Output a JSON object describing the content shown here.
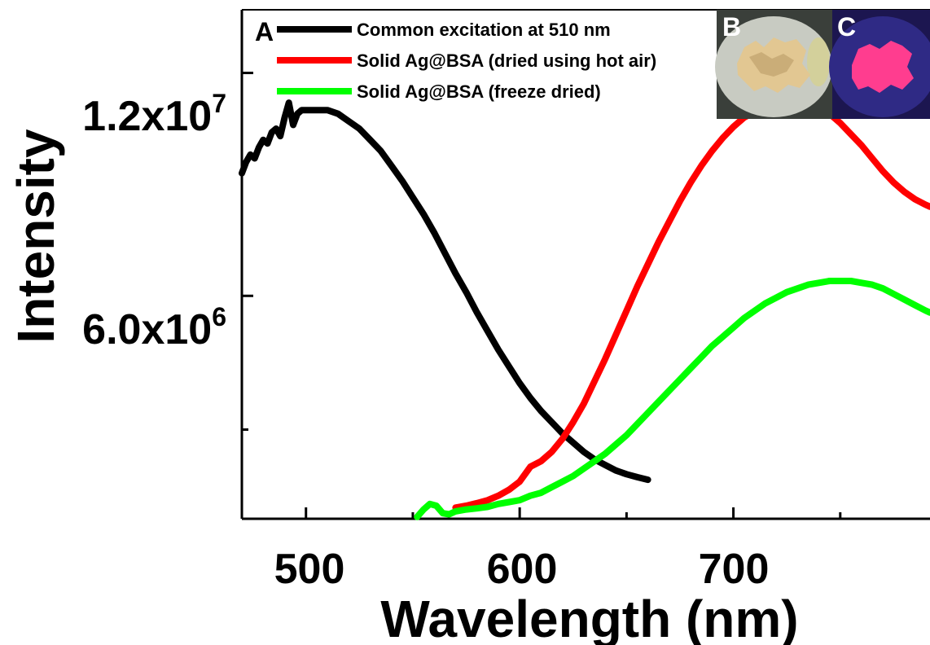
{
  "chart_data": {
    "type": "line",
    "xlabel": "Wavelength (nm)",
    "ylabel": "Intensity",
    "xlim": [
      470,
      792
    ],
    "ylim": [
      0,
      13700000
    ],
    "x_ticks": [
      500,
      600,
      700
    ],
    "x_tick_labels": [
      "500",
      "600",
      "700"
    ],
    "y_ticks": [
      6000000,
      12000000
    ],
    "y_tick_labels": [
      {
        "base": "6.0x10",
        "exp": "6"
      },
      {
        "base": "1.2x10",
        "exp": "7"
      }
    ],
    "y_minor_ticks": [
      2400000
    ],
    "grid": false,
    "legend": "top-left",
    "panel_letters": {
      "a": "A",
      "b": "B",
      "c": "C"
    },
    "series": [
      {
        "name": "Common excitation at 510 nm",
        "color": "#000000",
        "x": [
          470,
          472,
          474,
          476,
          478,
          480,
          482,
          484,
          486,
          488,
          490,
          492,
          494,
          496,
          498,
          500,
          505,
          510,
          515,
          520,
          525,
          530,
          535,
          540,
          545,
          550,
          555,
          560,
          565,
          570,
          575,
          580,
          585,
          590,
          595,
          600,
          605,
          610,
          615,
          620,
          625,
          630,
          635,
          640,
          645,
          650,
          655,
          660
        ],
        "values": [
          9300000,
          9600000,
          9800000,
          9700000,
          10000000,
          10200000,
          10100000,
          10400000,
          10500000,
          10300000,
          10800000,
          11200000,
          10600000,
          10900000,
          11000000,
          11000000,
          11000000,
          11000000,
          10900000,
          10700000,
          10500000,
          10200000,
          9900000,
          9500000,
          9100000,
          8650000,
          8200000,
          7700000,
          7150000,
          6600000,
          6100000,
          5550000,
          5050000,
          4550000,
          4100000,
          3650000,
          3250000,
          2900000,
          2600000,
          2300000,
          2050000,
          1800000,
          1600000,
          1450000,
          1300000,
          1200000,
          1120000,
          1050000
        ]
      },
      {
        "name": "Solid Ag@BSA (dried using hot air)",
        "color": "#ff0000",
        "x": [
          570,
          575,
          580,
          585,
          590,
          595,
          600,
          605,
          610,
          615,
          620,
          625,
          630,
          635,
          640,
          645,
          650,
          655,
          660,
          665,
          670,
          675,
          680,
          685,
          690,
          695,
          700,
          705,
          710,
          715,
          720,
          725,
          730,
          735,
          740,
          745,
          750,
          755,
          760,
          765,
          770,
          775,
          780,
          785,
          790,
          792
        ],
        "values": [
          300000,
          350000,
          420000,
          500000,
          620000,
          780000,
          1000000,
          1400000,
          1550000,
          1800000,
          2150000,
          2600000,
          3100000,
          3700000,
          4300000,
          4950000,
          5600000,
          6250000,
          6850000,
          7450000,
          8000000,
          8550000,
          9050000,
          9500000,
          9900000,
          10250000,
          10550000,
          10800000,
          10950000,
          11100000,
          11200000,
          11250000,
          11250000,
          11200000,
          11100000,
          10900000,
          10650000,
          10350000,
          10050000,
          9700000,
          9350000,
          9050000,
          8800000,
          8600000,
          8450000,
          8400000
        ]
      },
      {
        "name": "Solid Ag@BSA (freeze dried)",
        "color": "#00ff00",
        "x": [
          552,
          555,
          558,
          561,
          564,
          567,
          570,
          575,
          580,
          585,
          590,
          595,
          600,
          605,
          610,
          615,
          620,
          625,
          630,
          635,
          640,
          645,
          650,
          655,
          660,
          665,
          670,
          675,
          680,
          685,
          690,
          695,
          700,
          705,
          710,
          715,
          720,
          725,
          730,
          735,
          740,
          745,
          750,
          755,
          760,
          765,
          770,
          775,
          780,
          785,
          790,
          792
        ],
        "values": [
          50000,
          250000,
          400000,
          350000,
          150000,
          120000,
          200000,
          250000,
          280000,
          320000,
          400000,
          450000,
          500000,
          620000,
          700000,
          850000,
          1000000,
          1150000,
          1350000,
          1550000,
          1750000,
          2000000,
          2250000,
          2550000,
          2850000,
          3150000,
          3450000,
          3750000,
          4050000,
          4350000,
          4650000,
          4900000,
          5150000,
          5400000,
          5600000,
          5800000,
          5950000,
          6100000,
          6200000,
          6300000,
          6350000,
          6400000,
          6400000,
          6400000,
          6350000,
          6300000,
          6200000,
          6050000,
          5900000,
          5750000,
          5600000,
          5550000
        ]
      }
    ]
  },
  "inset_photos": [
    {
      "letter": "B",
      "description_icon": "dried-powder-photo",
      "bg": "#3a3f3a",
      "plate": "#c8cbc2",
      "sample": "#e2c792"
    },
    {
      "letter": "C",
      "description_icon": "fluorescent-powder-photo",
      "bg": "#1c1650",
      "plate": "#2f2a85",
      "sample": "#ff3d8f"
    }
  ]
}
